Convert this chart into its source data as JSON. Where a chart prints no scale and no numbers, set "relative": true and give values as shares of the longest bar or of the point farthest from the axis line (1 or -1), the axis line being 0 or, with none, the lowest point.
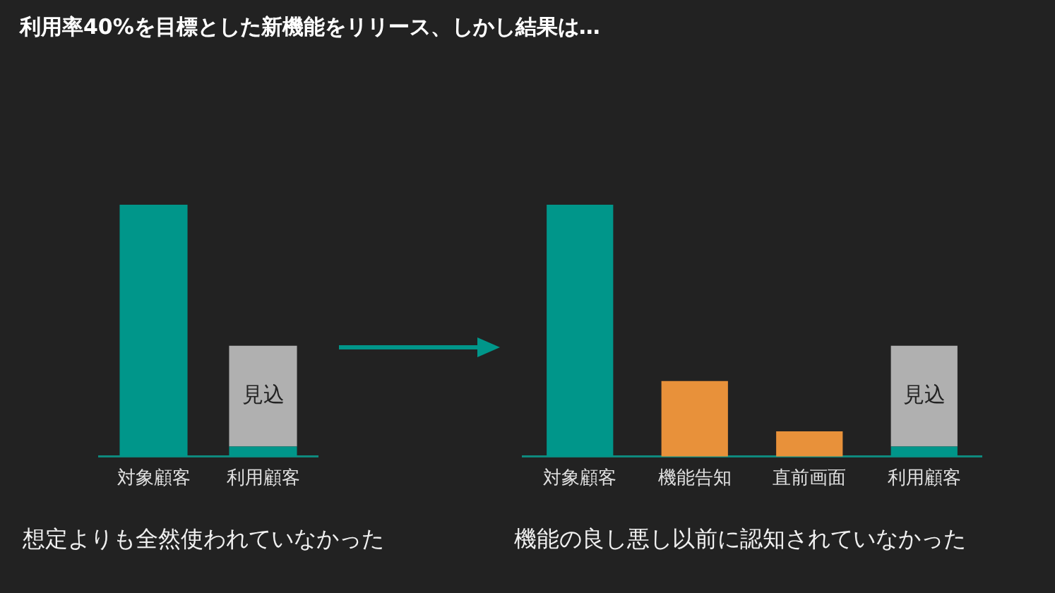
{
  "chart_data": [
    {
      "type": "bar",
      "title": "利用率40%を目標とした新機能をリリース、しかし結果は…",
      "relative": true,
      "stacked": true,
      "categories": [
        "対象顧客",
        "利用顧客"
      ],
      "series": [
        {
          "color": "#00968a",
          "values": [
            1,
            0.04
          ]
        },
        {
          "name": "見込",
          "color": "#b0b0b0",
          "values": [
            null,
            0.4
          ]
        }
      ],
      "annotations": [
        "想定よりも全然使われていなかった"
      ]
    },
    {
      "type": "bar",
      "relative": true,
      "stacked": true,
      "categories": [
        "対象顧客",
        "機能告知",
        "直前画面",
        "利用顧客"
      ],
      "series": [
        {
          "colors": [
            "#00968a",
            "#e8913a",
            "#e8913a",
            "#00968a"
          ],
          "values": [
            1,
            0.3,
            0.1,
            0.04
          ]
        },
        {
          "name": "見込",
          "color": "#b0b0b0",
          "values": [
            null,
            null,
            null,
            0.4
          ]
        }
      ],
      "annotations": [
        "機能の良し悪し以前に認知されていなかった"
      ]
    }
  ]
}
